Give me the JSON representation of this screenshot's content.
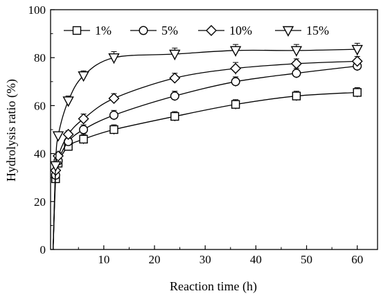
{
  "chart_data": {
    "type": "line",
    "xlabel": "Reaction time (h)",
    "ylabel": "Hydrolysis ratio (%)",
    "xlim": [
      -0.5,
      64
    ],
    "ylim": [
      0,
      100
    ],
    "xticks": [
      10,
      20,
      30,
      40,
      50,
      60
    ],
    "yticks": [
      0,
      20,
      40,
      60,
      80,
      100
    ],
    "x_tick_labels": [
      "10",
      "20",
      "30",
      "40",
      "50",
      "60"
    ],
    "y_tick_labels": [
      "0",
      "20",
      "40",
      "60",
      "80",
      "100"
    ],
    "grid": false,
    "legend_position": "top-left",
    "series": [
      {
        "name": "1%",
        "marker": "square",
        "x": [
          0,
          0.5,
          1,
          3,
          6,
          12,
          24,
          36,
          48,
          60
        ],
        "y": [
          0,
          29.5,
          36,
          43,
          46,
          50,
          55.5,
          60.5,
          64,
          65.5
        ],
        "err": [
          0,
          1.5,
          1.5,
          1.5,
          2,
          2,
          2,
          2,
          2,
          2
        ]
      },
      {
        "name": "5%",
        "marker": "circle",
        "x": [
          0,
          0.5,
          1,
          3,
          6,
          12,
          24,
          36,
          48,
          60
        ],
        "y": [
          0,
          31,
          37,
          45,
          50,
          56,
          64,
          70,
          73.5,
          76.5
        ],
        "err": [
          0,
          1.5,
          1.5,
          1.5,
          2,
          2,
          2,
          2,
          2,
          2
        ]
      },
      {
        "name": "10%",
        "marker": "diamond",
        "x": [
          0,
          0.5,
          1,
          3,
          6,
          12,
          24,
          36,
          48,
          60
        ],
        "y": [
          0,
          33,
          39,
          48,
          54.5,
          63,
          71.5,
          75.5,
          77.5,
          78.5
        ],
        "err": [
          0,
          1.5,
          1.5,
          1.5,
          2,
          2,
          2,
          2.5,
          2,
          2
        ]
      },
      {
        "name": "15%",
        "marker": "triangle-down",
        "x": [
          0,
          0.5,
          1,
          3,
          6,
          12,
          24,
          36,
          48,
          60
        ],
        "y": [
          0,
          35,
          47.5,
          62,
          72.5,
          80,
          81.5,
          83,
          83,
          83.5
        ],
        "err": [
          0,
          1.5,
          1.5,
          2,
          2,
          2.5,
          2.5,
          2.5,
          2.5,
          2.5
        ]
      }
    ]
  }
}
